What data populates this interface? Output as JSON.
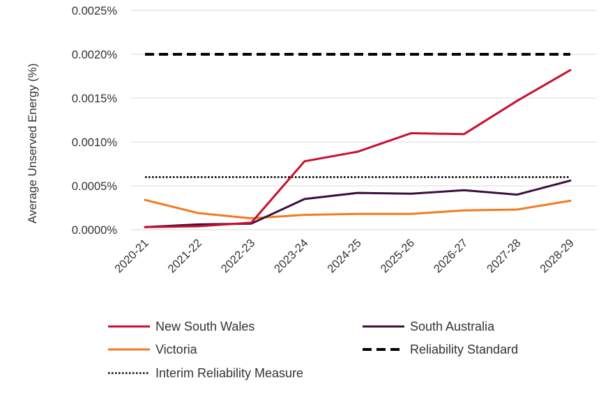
{
  "chart_data": {
    "type": "line",
    "title": "",
    "xlabel": "",
    "ylabel": "Average Unserved Energy (%)",
    "ylim": [
      0,
      0.0025
    ],
    "y_ticks": [
      0,
      0.0005,
      0.001,
      0.0015,
      0.002,
      0.0025
    ],
    "y_tick_labels": [
      "0.0000%",
      "0.0005%",
      "0.0010%",
      "0.0015%",
      "0.0020%",
      "0.0025%"
    ],
    "grid": true,
    "legend_position": "bottom",
    "categories": [
      "2020-21",
      "2021-22",
      "2022-23",
      "2023-24",
      "2024-25",
      "2025-26",
      "2026-27",
      "2027-28",
      "2028-29"
    ],
    "series": [
      {
        "name": "New South Wales",
        "color": "#c8102e",
        "style": "solid",
        "values": [
          3e-05,
          4e-05,
          8e-05,
          0.00078,
          0.00089,
          0.0011,
          0.00109,
          0.00147,
          0.00182
        ]
      },
      {
        "name": "South Australia",
        "color": "#3b0f3f",
        "style": "solid",
        "values": [
          3e-05,
          6e-05,
          7e-05,
          0.00035,
          0.00042,
          0.00041,
          0.00045,
          0.0004,
          0.00056
        ]
      },
      {
        "name": "Victoria",
        "color": "#f47a20",
        "style": "solid",
        "values": [
          0.00034,
          0.00019,
          0.00013,
          0.00017,
          0.00018,
          0.00018,
          0.00022,
          0.00023,
          0.00033
        ]
      },
      {
        "name": "Reliability Standard",
        "color": "#000000",
        "style": "dashed",
        "values": [
          0.002,
          0.002,
          0.002,
          0.002,
          0.002,
          0.002,
          0.002,
          0.002,
          0.002
        ]
      },
      {
        "name": "Interim Reliability Measure",
        "color": "#000000",
        "style": "dotted",
        "values": [
          0.0006,
          0.0006,
          0.0006,
          0.0006,
          0.0006,
          0.0006,
          0.0006,
          0.0006,
          0.0006
        ]
      }
    ]
  }
}
